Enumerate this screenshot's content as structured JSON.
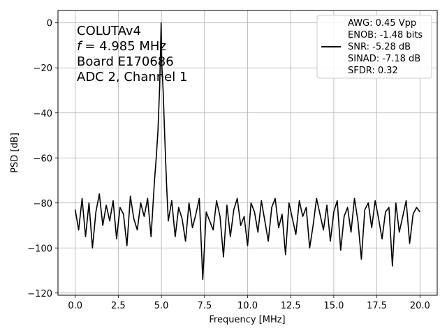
{
  "chart_data": {
    "type": "line",
    "xlabel": "Frequency [MHz]",
    "ylabel": "PSD [dB]",
    "xlim": [
      -1.0,
      21.0
    ],
    "ylim": [
      -121.0,
      5.5
    ],
    "xticks": [
      0.0,
      2.5,
      5.0,
      7.5,
      10.0,
      12.5,
      15.0,
      17.5,
      20.0
    ],
    "xtick_labels": [
      "0.0",
      "2.5",
      "5.0",
      "7.5",
      "10.0",
      "12.5",
      "15.0",
      "17.5",
      "20.0"
    ],
    "yticks": [
      0,
      -20,
      -40,
      -60,
      -80,
      -100,
      -120
    ],
    "ytick_labels": [
      "0",
      "−20",
      "−40",
      "−60",
      "−80",
      "−100",
      "−120"
    ],
    "grid": true,
    "legend_placement": "top-right",
    "annotation_lines": [
      "COLUTAv4",
      "= 4.985 MHz",
      "Board E170686",
      "ADC 2, Channel 1"
    ],
    "annotation_symbol": "f",
    "legend_lines": [
      "AWG: 0.45 Vpp",
      "ENOB: -1.48 bits",
      "SNR: -5.28 dB",
      "SINAD: -7.18 dB",
      "SFDR: 0.32"
    ],
    "series": [
      {
        "color": "#000000",
        "x": [
          0.0,
          0.2,
          0.4,
          0.6,
          0.8,
          1.0,
          1.2,
          1.4,
          1.6,
          1.8,
          2.0,
          2.2,
          2.4,
          2.6,
          2.8,
          3.0,
          3.2,
          3.4,
          3.6,
          3.8,
          4.0,
          4.2,
          4.4,
          4.6,
          4.7,
          4.8,
          4.9,
          4.95,
          4.985,
          5.02,
          5.1,
          5.2,
          5.3,
          5.4,
          5.6,
          5.8,
          6.0,
          6.2,
          6.4,
          6.6,
          6.8,
          7.0,
          7.2,
          7.4,
          7.6,
          7.8,
          8.0,
          8.2,
          8.4,
          8.6,
          8.8,
          9.0,
          9.2,
          9.4,
          9.6,
          9.8,
          10.0,
          10.2,
          10.4,
          10.6,
          10.8,
          11.0,
          11.2,
          11.4,
          11.6,
          11.8,
          12.0,
          12.2,
          12.4,
          12.6,
          12.8,
          13.0,
          13.2,
          13.4,
          13.6,
          13.8,
          14.0,
          14.2,
          14.4,
          14.6,
          14.8,
          15.0,
          15.2,
          15.4,
          15.6,
          15.8,
          16.0,
          16.2,
          16.4,
          16.6,
          16.8,
          17.0,
          17.2,
          17.4,
          17.6,
          17.8,
          18.0,
          18.2,
          18.4,
          18.6,
          18.8,
          19.0,
          19.2,
          19.4,
          19.6,
          19.8,
          20.0
        ],
        "y": [
          -83,
          -92,
          -78,
          -95,
          -80,
          -100,
          -84,
          -76,
          -90,
          -81,
          -88,
          -79,
          -96,
          -82,
          -85,
          -99,
          -77,
          -87,
          -92,
          -80,
          -86,
          -78,
          -95,
          -70,
          -60,
          -48,
          -28,
          -12,
          0,
          -18,
          -30,
          -52,
          -72,
          -88,
          -79,
          -95,
          -82,
          -87,
          -97,
          -80,
          -91,
          -85,
          -78,
          -114,
          -84,
          -88,
          -92,
          -79,
          -86,
          -104,
          -81,
          -95,
          -83,
          -78,
          -90,
          -86,
          -99,
          -80,
          -84,
          -93,
          -79,
          -88,
          -97,
          -82,
          -78,
          -91,
          -85,
          -103,
          -80,
          -87,
          -94,
          -79,
          -86,
          -82,
          -100,
          -90,
          -78,
          -85,
          -92,
          -81,
          -97,
          -84,
          -79,
          -101,
          -86,
          -82,
          -93,
          -78,
          -88,
          -105,
          -83,
          -80,
          -91,
          -79,
          -87,
          -96,
          -84,
          -82,
          -108,
          -80,
          -93,
          -86,
          -79,
          -98,
          -85,
          -82,
          -84
        ]
      }
    ]
  }
}
